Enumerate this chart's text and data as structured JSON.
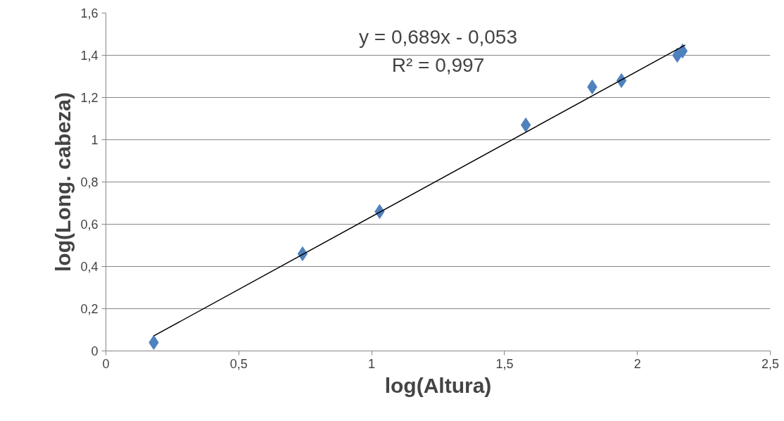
{
  "chart_data": {
    "type": "scatter",
    "xlabel": "log(Altura)",
    "ylabel": "log(Long. cabeza)",
    "annotations": [
      "y = 0,689x - 0,053",
      "R² = 0,997"
    ],
    "series": [
      {
        "color": "#4f81bd",
        "marker": "diamond",
        "x": [
          0.18,
          0.74,
          1.03,
          1.58,
          1.83,
          1.94,
          2.15,
          2.17
        ],
        "values": [
          0.04,
          0.46,
          0.66,
          1.07,
          1.25,
          1.28,
          1.4,
          1.42
        ]
      },
      {
        "type": "line",
        "color": "#000000",
        "x": [
          0.18,
          2.18
        ],
        "values": [
          0.071,
          1.449
        ]
      }
    ],
    "xlim": [
      0,
      2.5
    ],
    "ylim": [
      0,
      1.6
    ],
    "xticks": [
      0,
      {
        "value": 0.5,
        "label": "0,5"
      },
      1,
      {
        "value": 1.5,
        "label": "1,5"
      },
      2,
      {
        "value": 2.5,
        "label": "2,5"
      }
    ],
    "yticks": [
      0,
      {
        "value": 0.2,
        "label": "0,2"
      },
      {
        "value": 0.4,
        "label": "0,4"
      },
      {
        "value": 0.6,
        "label": "0,6"
      },
      {
        "value": 0.8,
        "label": "0,8"
      },
      1,
      {
        "value": 1.2,
        "label": "1,2"
      },
      {
        "value": 1.4,
        "label": "1,4"
      },
      {
        "value": 1.6,
        "label": "1,6"
      }
    ],
    "grid": "y"
  }
}
